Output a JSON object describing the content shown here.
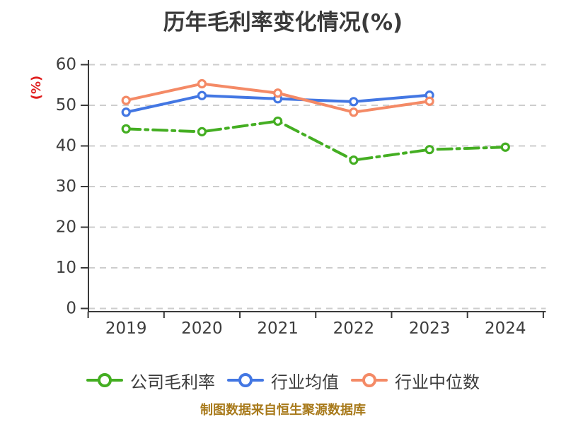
{
  "title": "历年毛利率变化情况(%)",
  "footer_note": "制图数据来自恒生聚源数据库",
  "chart_data": {
    "type": "line",
    "title": "历年毛利率变化情况(%)",
    "categories": [
      "2019",
      "2020",
      "2021",
      "2022",
      "2023",
      "2024"
    ],
    "series": [
      {
        "name": "公司毛利率",
        "color": "#44ae22",
        "line_style": "dashdot",
        "marker": "circle-white-fill",
        "values": [
          44.2,
          43.5,
          46.1,
          36.5,
          39.1,
          39.7
        ]
      },
      {
        "name": "行业均值",
        "color": "#4377e3",
        "line_style": "solid",
        "marker": "circle-white-fill",
        "values": [
          48.3,
          52.4,
          51.6,
          50.9,
          52.5,
          null
        ]
      },
      {
        "name": "行业中位数",
        "color": "#f48a66",
        "line_style": "solid",
        "marker": "circle-white-fill",
        "values": [
          51.2,
          55.3,
          53.0,
          48.3,
          51.0,
          null
        ]
      }
    ],
    "xlabel": "",
    "ylabel": "(%)",
    "ylim": [
      0,
      60
    ],
    "yticks": [
      0,
      10,
      20,
      30,
      40,
      50,
      60
    ],
    "grid": true,
    "gridline_style": "dashed",
    "legend_position": "bottom"
  },
  "colors": {
    "background": "#ffffff",
    "title_text": "#3a3a3a",
    "axis_text": "#3d3d3d",
    "axis_line": "#3a3a3a",
    "gridline": "#cdcdcd",
    "ylabel_text": "#e01f1f",
    "footer_text": "#a87a1b",
    "marker_fill": "#ffffff"
  }
}
